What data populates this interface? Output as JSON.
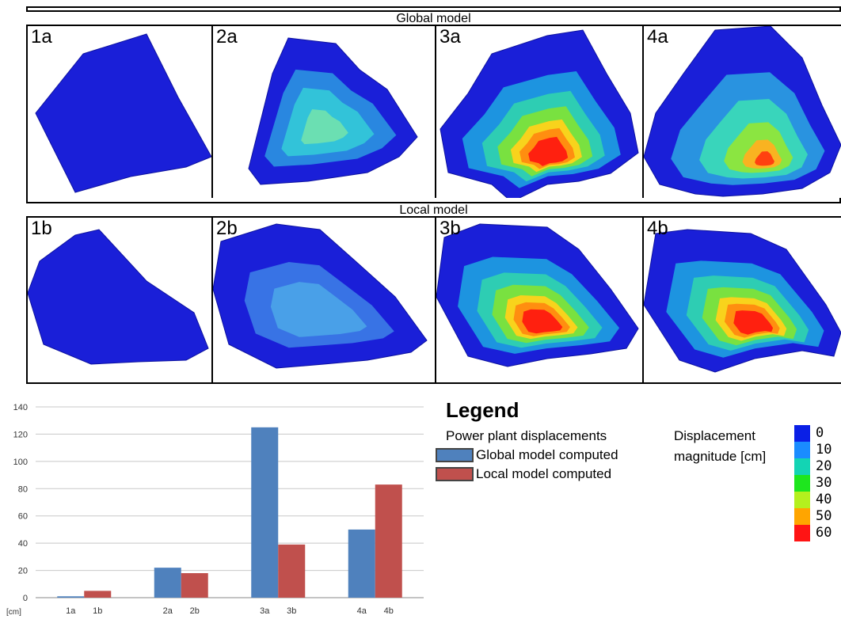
{
  "figure": {
    "global_band_label": "Global model",
    "local_band_label": "Local model",
    "top_panels": [
      {
        "label": "1a",
        "scheme": "blue"
      },
      {
        "label": "2a",
        "scheme": "cyan"
      },
      {
        "label": "3a",
        "scheme": "red"
      },
      {
        "label": "4a",
        "scheme": "mixed"
      }
    ],
    "bottom_panels": [
      {
        "label": "1b",
        "scheme": "blue"
      },
      {
        "label": "2b",
        "scheme": "lightblue"
      },
      {
        "label": "3b",
        "scheme": "red"
      },
      {
        "label": "4b",
        "scheme": "red"
      }
    ]
  },
  "legend": {
    "title": "Legend",
    "subtitle": "Power plant displacements",
    "items": [
      {
        "label": "Global model computed",
        "color": "#4f81bd"
      },
      {
        "label": "Local model computed",
        "color": "#c0504d"
      }
    ],
    "scale_label_line1": "Displacement",
    "scale_label_line2": "magnitude [cm]",
    "scale": [
      {
        "tick": "0",
        "color": "#0a1fe6"
      },
      {
        "tick": "10",
        "color": "#1a8cff"
      },
      {
        "tick": "20",
        "color": "#13d4b4"
      },
      {
        "tick": "30",
        "color": "#1ee61e"
      },
      {
        "tick": "40",
        "color": "#b4f01e"
      },
      {
        "tick": "50",
        "color": "#ffa500"
      },
      {
        "tick": "60",
        "color": "#ff1414"
      }
    ]
  },
  "chart_data": {
    "type": "bar",
    "categories": [
      "1a 1b",
      "2a 2b",
      "3a 3b",
      "4a 4b"
    ],
    "x_tick_labels": [
      [
        "1a",
        "1b"
      ],
      [
        "2a",
        "2b"
      ],
      [
        "3a",
        "3b"
      ],
      [
        "4a",
        "4b"
      ]
    ],
    "series": [
      {
        "name": "Global model computed",
        "values": [
          1,
          22,
          125,
          50
        ],
        "color": "#4f81bd"
      },
      {
        "name": "Local model computed",
        "values": [
          5,
          18,
          39,
          83
        ],
        "color": "#c0504d"
      }
    ],
    "ylim": [
      0,
      140
    ],
    "yticks": [
      0,
      20,
      40,
      60,
      80,
      100,
      120,
      140
    ],
    "ylabel": "[cm]",
    "grid": true
  }
}
